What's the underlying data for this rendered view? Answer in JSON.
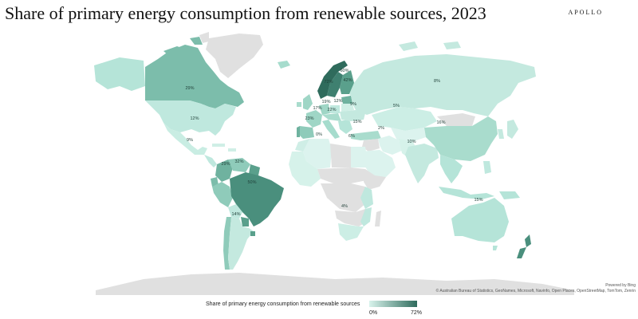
{
  "header": {
    "title": "Share of primary energy consumption from renewable sources, 2023",
    "brand": "APOLLO"
  },
  "credits": {
    "powered_by": "Powered by Bing",
    "attribution": "© Australian Bureau of Statistics, GeoNames, Microsoft, Navinfo, Open Places, OpenStreetMap, TomTom, Zenrin"
  },
  "legend": {
    "title": "Share of primary energy consumption from renewable sources",
    "min_label": "0%",
    "max_label": "72%",
    "color_min": "#d8f3ec",
    "color_max": "#2f6b5c"
  },
  "colors": {
    "no_data": "#e0e0e0",
    "ocean": "#ffffff"
  },
  "regions": {
    "canada": "29%",
    "usa": "12%",
    "mexico": "9%",
    "colombia": "29%",
    "brazil": "50%",
    "argentina": "14%",
    "russia": "8%",
    "kazakhstan": "5%",
    "china": "16%",
    "india": "10%",
    "iran": "2%",
    "turkey": "15%",
    "ukraine": "9%",
    "spain": "23%",
    "france": "17%",
    "germany": "19%",
    "poland": "12%",
    "italy": "22%",
    "algeria": "0%",
    "egypt": "6%",
    "south_africa": "4%",
    "australia": "15%",
    "norway": "72%",
    "sweden": "60%",
    "finland": "42%",
    "venezuela": "32%"
  }
}
